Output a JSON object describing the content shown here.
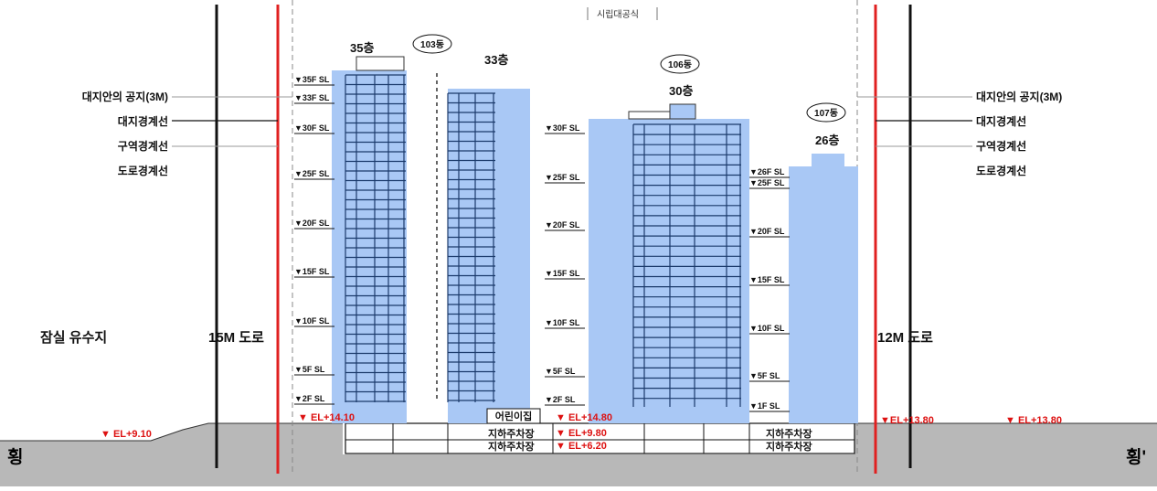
{
  "header": {
    "title": "시립대공식"
  },
  "left_labels": [
    "대지안의 공지(3M)",
    "대지경계선",
    "구역경계선",
    "도로경계선"
  ],
  "right_labels": [
    "대지안의 공지(3M)",
    "대지경계선",
    "구역경계선",
    "도로경계선"
  ],
  "roads": {
    "left_area": "잠실 유수지",
    "left_road": "15M 도로",
    "right_road": "12M 도로"
  },
  "buildings": {
    "b103": {
      "tag": "103동",
      "floors_left": "35층",
      "floors_right": "33층"
    },
    "b106": {
      "tag": "106동",
      "floors": "30층"
    },
    "b107": {
      "tag": "107동",
      "floors": "26층"
    }
  },
  "levels": {
    "col1": [
      "35F SL",
      "33F SL",
      "30F SL",
      "25F SL",
      "20F SL",
      "15F SL",
      "10F SL",
      "5F SL",
      "2F SL"
    ],
    "col2": [
      "30F SL",
      "25F SL",
      "20F SL",
      "15F SL",
      "10F SL",
      "5F SL",
      "2F SL"
    ],
    "col3": [
      "26F SL",
      "25F SL",
      "20F SL",
      "15F SL",
      "10F SL",
      "5F SL",
      "1F SL"
    ]
  },
  "elevations": {
    "left_ground": "EL+9.10",
    "site_left": "EL+14.10",
    "daycare_level": "EL+14.80",
    "b1": "EL+9.80",
    "b2": "EL+6.20",
    "right_1": "EL+13.80",
    "right_2": "EL+13.80"
  },
  "facilities": {
    "daycare": "어린이집",
    "parking": "지하주차장"
  },
  "section": {
    "left": "횡",
    "right": "횡'"
  },
  "colors": {
    "building": "#a9c8f5",
    "boundary_red": "#e02020",
    "ground": "#b8b8b8",
    "text_red": "#d11111"
  }
}
